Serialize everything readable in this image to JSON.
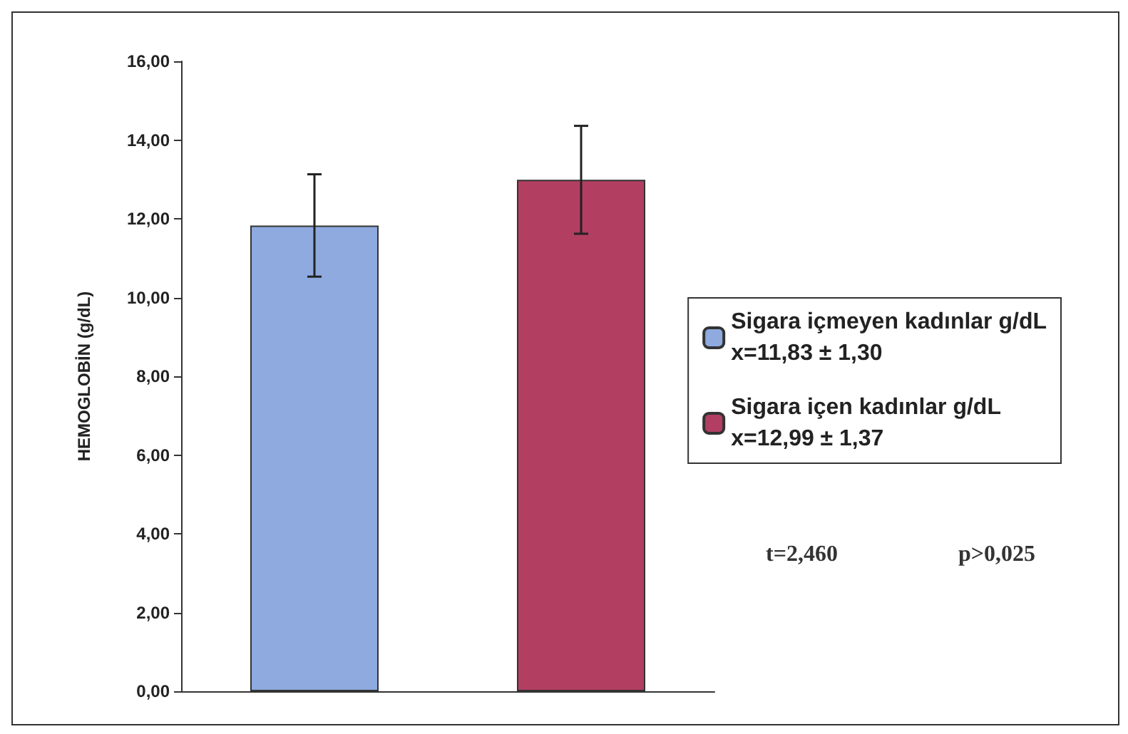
{
  "chart_data": {
    "type": "bar",
    "ylabel": "HEMOGLOBİN (g/dL)",
    "categories": [
      null,
      null
    ],
    "series": [
      {
        "name": "Sigara içmeyen kadınlar g/dL\nx=11,83 ± 1,30",
        "color": "#8eaadf",
        "values": [
          11.83,
          null
        ],
        "errors": [
          1.3,
          null
        ]
      },
      {
        "name": "Sigara içen kadınlar g/dL\nx=12,99 ± 1,37",
        "color": "#b23f62",
        "values": [
          null,
          12.99
        ],
        "errors": [
          null,
          1.37
        ]
      }
    ],
    "ylim": [
      0,
      16
    ],
    "yticks": [
      {
        "value": 0,
        "label": "0,00"
      },
      {
        "value": 2,
        "label": "2,00"
      },
      {
        "value": 4,
        "label": "4,00"
      },
      {
        "value": 6,
        "label": "6,00"
      },
      {
        "value": 8,
        "label": "8,00"
      },
      {
        "value": 10,
        "label": "10,00"
      },
      {
        "value": 12,
        "label": "12,00"
      },
      {
        "value": 14,
        "label": "14,00"
      },
      {
        "value": 16,
        "label": "16,00"
      }
    ],
    "annotations": [
      "t=2,460",
      "p>0,025"
    ],
    "legend": "right",
    "grid": false
  }
}
